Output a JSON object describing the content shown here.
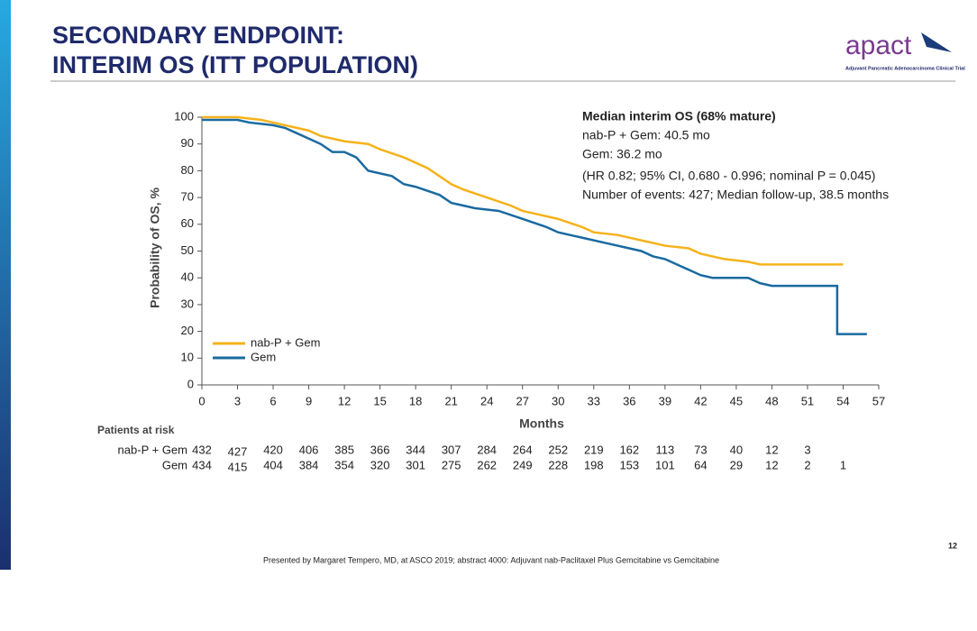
{
  "slide": {
    "title_lines": [
      "SECONDARY ENDPOINT:",
      "INTERIM OS (ITT POPULATION)"
    ],
    "logo": "apact",
    "logo_tagline": "Adjuvant Pancreatic Adenocarcinoma Clinical Trial",
    "footer": "Presented by Margaret Tempero, MD, at ASCO 2019; abstract 4000: Adjuvant nab-Paclitaxel Plus Gemcitabine vs Gemcitabine",
    "page_number": "12"
  },
  "chart_data": {
    "type": "line",
    "xlabel": "Months",
    "ylabel": "Probability of OS, %",
    "xlim": [
      0,
      57
    ],
    "xticks": [
      0,
      3,
      6,
      9,
      12,
      15,
      18,
      21,
      24,
      27,
      30,
      33,
      36,
      39,
      42,
      45,
      48,
      51,
      54,
      57
    ],
    "ylim": [
      0,
      100
    ],
    "yticks": [
      0,
      10,
      20,
      30,
      40,
      50,
      60,
      70,
      80,
      90,
      100
    ],
    "series": [
      {
        "name": "nab-P + Gem",
        "color": "#f5b21b",
        "x": [
          0,
          3,
          5,
          6,
          7,
          8,
          9,
          10,
          12,
          14,
          15,
          17,
          18,
          19,
          20,
          21,
          22,
          24,
          26,
          27,
          28,
          30,
          32,
          33,
          35,
          37,
          39,
          41,
          42,
          43,
          44,
          46,
          47,
          54
        ],
        "values": [
          100,
          100,
          99,
          98,
          97,
          96,
          95,
          93,
          91,
          90,
          88,
          85,
          83,
          81,
          78,
          75,
          73,
          70,
          67,
          65,
          64,
          62,
          59,
          57,
          56,
          54,
          52,
          51,
          49,
          48,
          47,
          46,
          45,
          45
        ]
      },
      {
        "name": "Gem",
        "color": "#1a6aa0",
        "x": [
          0,
          3,
          4,
          6,
          7,
          8,
          9,
          10,
          11,
          12,
          13,
          14,
          15,
          16,
          17,
          18,
          20,
          21,
          22,
          23,
          25,
          27,
          29,
          30,
          32,
          34,
          36,
          37,
          38,
          39,
          40,
          41,
          42,
          43,
          46,
          47,
          48,
          51,
          53.5,
          53.5,
          56
        ],
        "values": [
          99,
          99,
          98,
          97,
          96,
          94,
          92,
          90,
          87,
          87,
          85,
          80,
          79,
          78,
          75,
          74,
          71,
          68,
          67,
          66,
          65,
          62,
          59,
          57,
          55,
          53,
          51,
          50,
          48,
          47,
          45,
          43,
          41,
          40,
          40,
          38,
          37,
          37,
          37,
          19,
          19
        ]
      }
    ],
    "annotations": [
      "Median interim OS (68% mature)",
      "nab-P + Gem: 40.5 mo",
      "Gem: 36.2 mo",
      "(HR 0.82; 95% CI, 0.680 - 0.996; nominal P = 0.045)",
      "Number of events: 427; Median follow-up, 38.5 months"
    ],
    "risk_table": {
      "title": "Patients at risk",
      "rows": [
        {
          "name": "nab-P + Gem",
          "values": [
            432,
            427,
            420,
            406,
            385,
            366,
            344,
            307,
            284,
            264,
            252,
            219,
            162,
            113,
            73,
            40,
            12,
            3,
            null
          ]
        },
        {
          "name": "Gem",
          "values": [
            434,
            415,
            404,
            384,
            354,
            320,
            301,
            275,
            262,
            249,
            228,
            198,
            153,
            101,
            64,
            29,
            12,
            2,
            1
          ]
        }
      ]
    }
  }
}
